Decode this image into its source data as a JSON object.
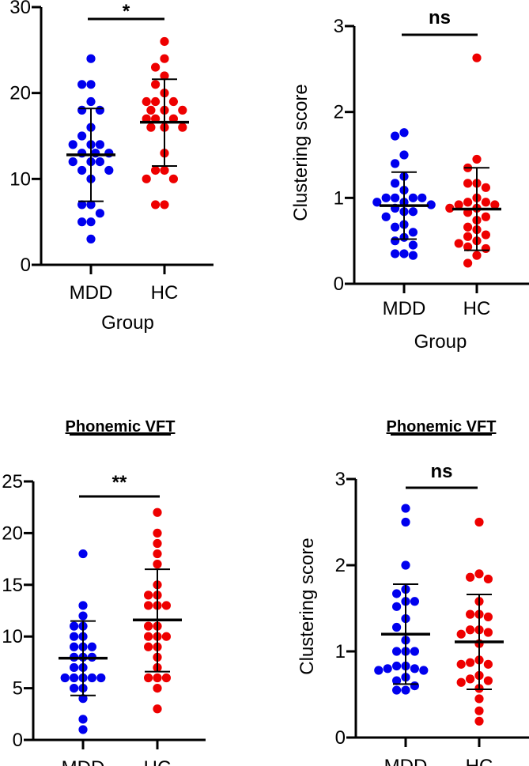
{
  "colors": {
    "MDD": "#0000ee",
    "HC": "#ee0000",
    "axis": "#000000"
  },
  "chart_data": [
    {
      "type": "scatter",
      "title": "",
      "xlabel": "Group",
      "ylabel": "",
      "ylim": [
        0,
        30
      ],
      "yticks": [
        "0",
        "10",
        "20",
        "30"
      ],
      "ytick_values": [
        0,
        10,
        20,
        30
      ],
      "categories": [
        "MDD",
        "HC"
      ],
      "significance": "*",
      "series": [
        {
          "name": "MDD",
          "values": [
            24,
            21,
            21,
            19,
            18,
            18,
            16,
            15,
            14,
            14,
            14,
            13,
            13,
            13,
            12,
            12,
            12,
            11,
            11,
            10,
            7,
            7,
            6,
            5,
            5,
            3
          ],
          "mean": 12.8,
          "sd_low": 7.4,
          "sd_high": 18.2
        },
        {
          "name": "HC",
          "values": [
            26,
            24,
            23,
            22,
            21,
            20,
            19,
            19,
            19,
            18,
            18,
            18,
            17,
            17,
            17,
            16,
            16,
            16,
            13,
            11,
            11,
            10,
            10,
            7,
            7
          ],
          "mean": 16.6,
          "sd_low": 11.5,
          "sd_high": 21.6
        }
      ]
    },
    {
      "type": "scatter",
      "title": "",
      "xlabel": "Group",
      "ylabel": "Clustering score",
      "ylim": [
        0,
        3
      ],
      "yticks": [
        "0",
        "1",
        "2",
        "3"
      ],
      "ytick_values": [
        0,
        1,
        2,
        3
      ],
      "categories": [
        "MDD",
        "HC"
      ],
      "significance": "ns",
      "series": [
        {
          "name": "MDD",
          "values": [
            1.76,
            1.72,
            1.5,
            1.4,
            1.25,
            1.17,
            1.09,
            1.0,
            1.0,
            1.0,
            1.0,
            0.95,
            0.95,
            0.92,
            0.88,
            0.84,
            0.84,
            0.78,
            0.69,
            0.66,
            0.6,
            0.54,
            0.5,
            0.45,
            0.35,
            0.35,
            0.33
          ],
          "mean": 0.91,
          "sd_low": 0.52,
          "sd_high": 1.3
        },
        {
          "name": "HC",
          "values": [
            2.63,
            1.45,
            1.35,
            1.17,
            1.17,
            1.12,
            1.0,
            0.95,
            0.95,
            0.92,
            0.92,
            0.88,
            0.88,
            0.83,
            0.78,
            0.74,
            0.66,
            0.63,
            0.57,
            0.55,
            0.5,
            0.47,
            0.43,
            0.41,
            0.33,
            0.24
          ],
          "mean": 0.87,
          "sd_low": 0.39,
          "sd_high": 1.35
        }
      ]
    },
    {
      "type": "scatter",
      "title": "Phonemic VFT",
      "xlabel": "",
      "ylabel": "",
      "ylim": [
        0,
        25
      ],
      "yticks": [
        "0",
        "5",
        "10",
        "15",
        "20",
        "25"
      ],
      "ytick_values": [
        0,
        5,
        10,
        15,
        20,
        25
      ],
      "categories": [
        "MDD",
        "HC"
      ],
      "significance": "**",
      "series": [
        {
          "name": "MDD",
          "values": [
            18,
            13,
            12,
            11,
            11,
            10,
            10,
            9,
            9,
            9,
            8,
            8,
            8,
            7,
            7,
            6,
            6,
            6,
            6,
            6,
            5,
            5,
            4,
            2,
            1
          ],
          "mean": 7.9,
          "sd_low": 4.3,
          "sd_high": 11.5
        },
        {
          "name": "HC",
          "values": [
            22,
            20,
            19,
            18,
            17,
            15,
            14,
            14,
            13,
            13,
            13,
            11,
            11,
            10,
            10,
            10,
            9,
            9,
            8,
            7,
            6,
            6,
            6,
            5,
            3
          ],
          "mean": 11.6,
          "sd_low": 6.6,
          "sd_high": 16.5
        }
      ]
    },
    {
      "type": "scatter",
      "title": "Phonemic VFT",
      "xlabel": "",
      "ylabel": "Clustering score",
      "ylim": [
        0,
        3
      ],
      "yticks": [
        "0",
        "1",
        "2",
        "3"
      ],
      "ytick_values": [
        0,
        1,
        2,
        3
      ],
      "categories": [
        "MDD",
        "HC"
      ],
      "significance": "ns",
      "series": [
        {
          "name": "MDD",
          "values": [
            2.66,
            2.5,
            2.0,
            1.72,
            1.67,
            1.58,
            1.58,
            1.52,
            1.38,
            1.28,
            1.13,
            1.0,
            1.0,
            1.0,
            0.83,
            0.83,
            0.8,
            0.8,
            0.78,
            0.78,
            0.7,
            0.66,
            0.6,
            0.55,
            0.55
          ],
          "mean": 1.2,
          "sd_low": 0.62,
          "sd_high": 1.78
        },
        {
          "name": "HC",
          "values": [
            2.5,
            1.9,
            1.86,
            1.84,
            1.58,
            1.43,
            1.43,
            1.4,
            1.25,
            1.25,
            1.22,
            1.2,
            1.09,
            0.9,
            0.87,
            0.85,
            0.85,
            0.72,
            0.68,
            0.66,
            0.64,
            0.57,
            0.45,
            0.31,
            0.19
          ],
          "mean": 1.11,
          "sd_low": 0.56,
          "sd_high": 1.66
        }
      ]
    }
  ]
}
